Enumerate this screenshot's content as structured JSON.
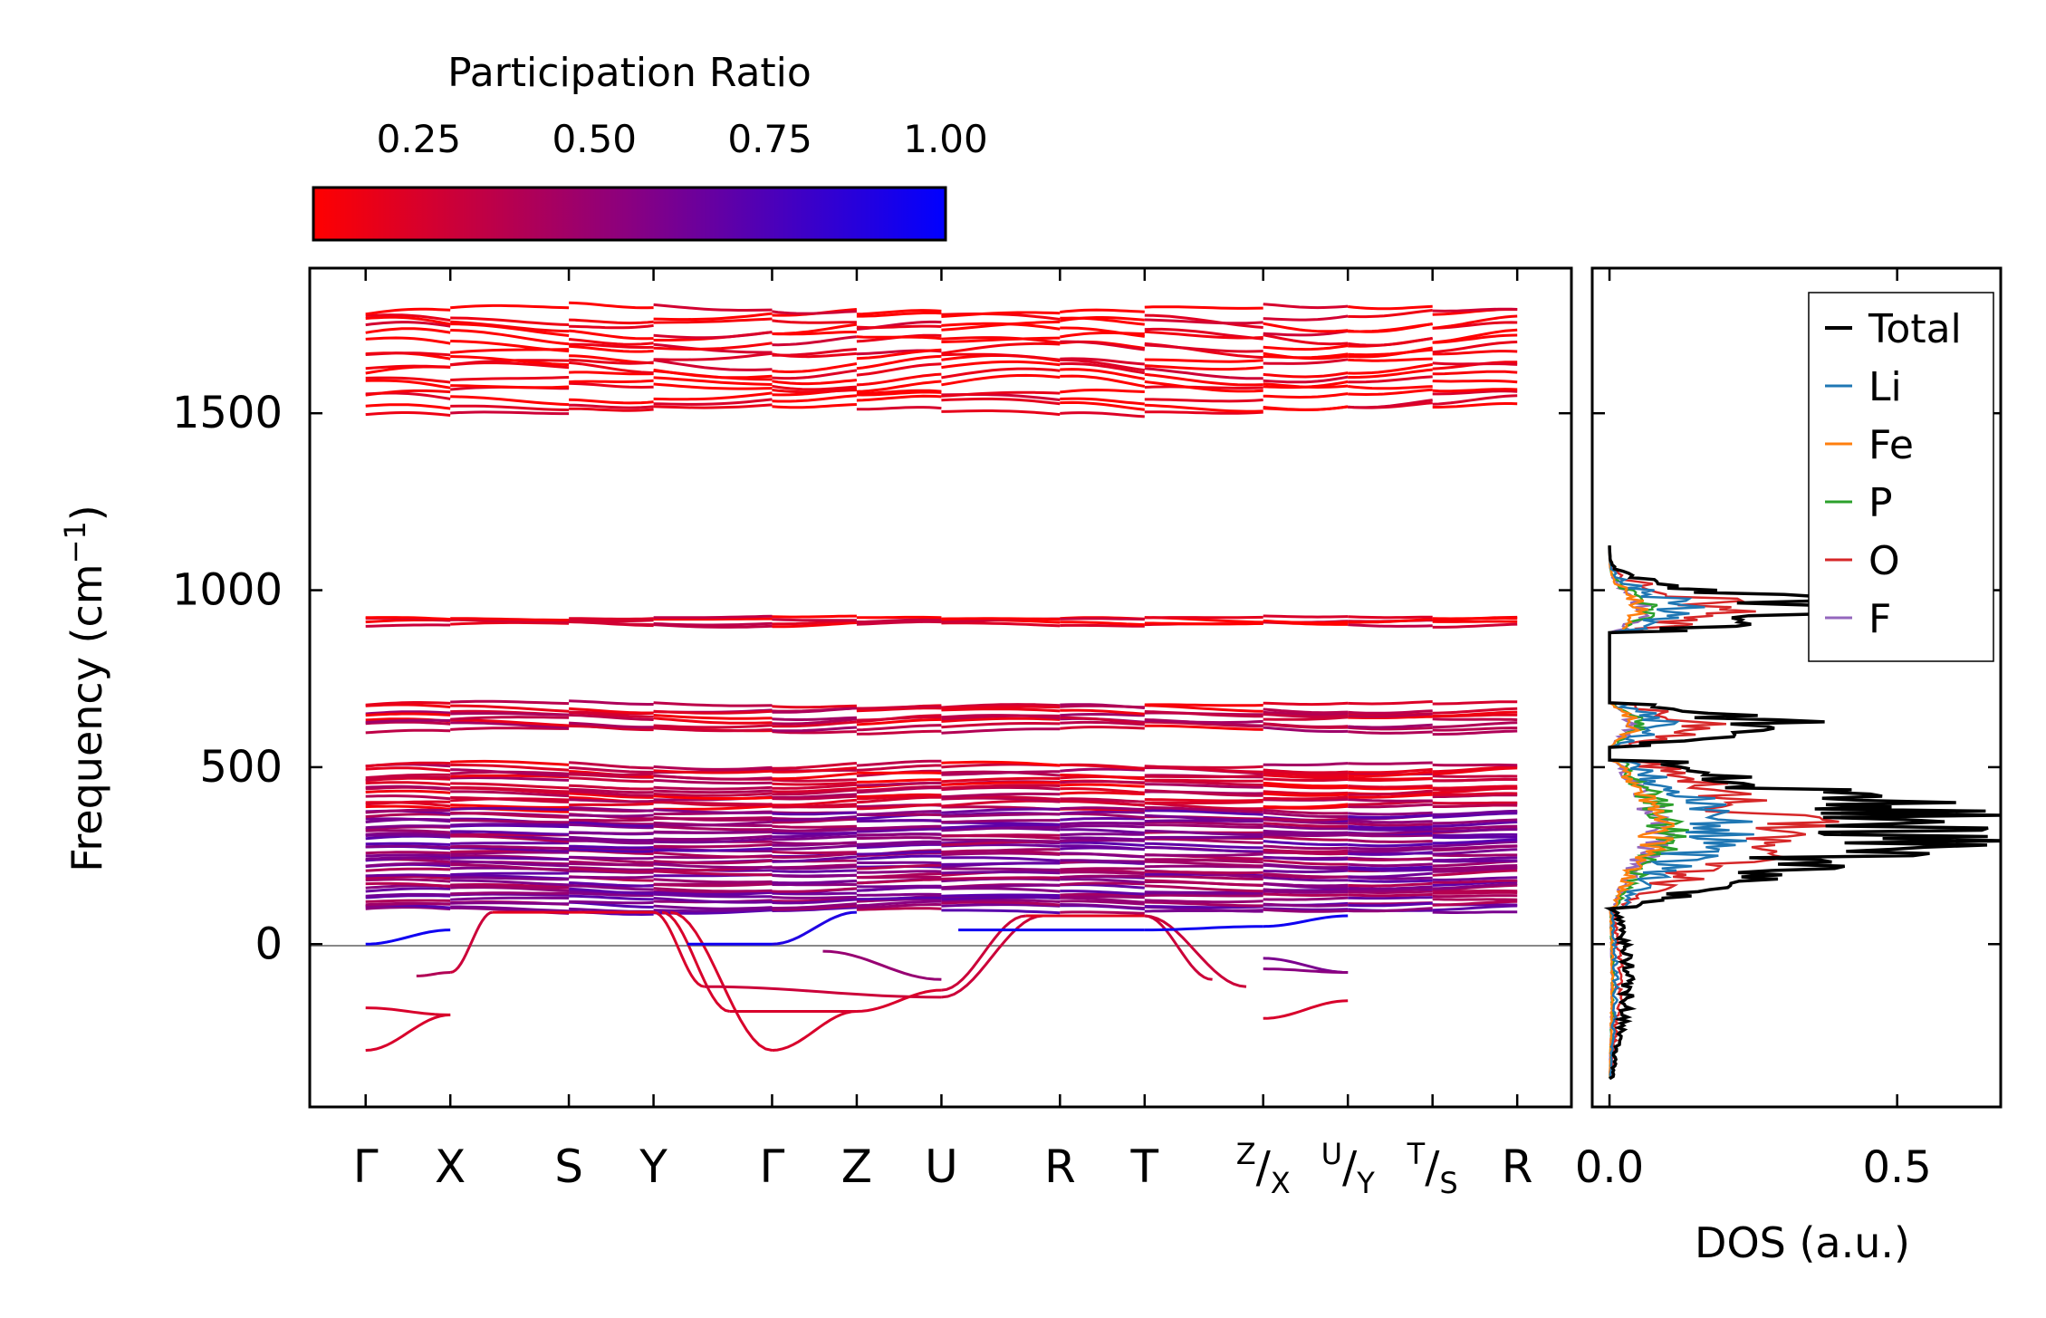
{
  "colorbar": {
    "label": "Participation Ratio",
    "ticks": [
      "0.25",
      "0.50",
      "0.75",
      "1.00"
    ],
    "tick_values": [
      0.25,
      0.5,
      0.75,
      1.0
    ],
    "range": [
      0.1,
      1.0
    ],
    "color_low": "#ff0000",
    "color_high": "#0000ff"
  },
  "chart_data": [
    {
      "type": "line",
      "name": "phonon band structure",
      "ylabel": "Frequency (cm⁻¹)",
      "ylim": [
        -460,
        1910
      ],
      "yticks": [
        0,
        500,
        1000,
        1500
      ],
      "ytick_labels": [
        "0",
        "500",
        "1000",
        "1500"
      ],
      "kpath": [
        {
          "label": "Γ",
          "pos": 0.0
        },
        {
          "label": "X",
          "pos": 0.5
        },
        {
          "label": "S",
          "pos": 1.2
        },
        {
          "label": "Y",
          "pos": 1.7
        },
        {
          "label": "Γ",
          "pos": 2.4
        },
        {
          "label": "Z",
          "pos": 2.9
        },
        {
          "label": "U",
          "pos": 3.4
        },
        {
          "label": "R",
          "pos": 4.1
        },
        {
          "label": "T",
          "pos": 4.6
        },
        {
          "label": "Z|X",
          "sup": "Z",
          "main": "/X",
          "pos": 5.3
        },
        {
          "label": "U|Y",
          "sup": "U",
          "main": "/Y",
          "pos": 5.8
        },
        {
          "label": "T|S",
          "sup": "T",
          "main": "/S",
          "pos": 6.3
        },
        {
          "label": "R",
          "pos": 6.8
        }
      ],
      "xlim": [
        -0.33,
        7.12
      ],
      "zero_line": 0,
      "band_groups": [
        {
          "range": [
            1500,
            1800
          ],
          "bands": 16,
          "pr": 0.12
        },
        {
          "range": [
            900,
            925
          ],
          "bands": 4,
          "pr": 0.2
        },
        {
          "range": [
            600,
            680
          ],
          "bands": 8,
          "pr": 0.3
        },
        {
          "range": [
            380,
            510
          ],
          "bands": 14,
          "pr": 0.28
        },
        {
          "range": [
            90,
            380
          ],
          "bands": 36,
          "pr": 0.55
        }
      ],
      "imaginary_modes_min": -300
    },
    {
      "type": "line",
      "name": "density of states",
      "xlabel": "DOS (a.u.)",
      "xlim": [
        -0.03,
        0.68
      ],
      "xticks": [
        0.0,
        0.5
      ],
      "xtick_labels": [
        "0.0",
        "0.5"
      ],
      "ylim": [
        -460,
        1910
      ],
      "series": [
        {
          "name": "Total",
          "color": "#000000",
          "peak": 0.64
        },
        {
          "name": "Li",
          "color": "#1f77b4",
          "peak": 0.22
        },
        {
          "name": "Fe",
          "color": "#ff7f0e",
          "peak": 0.1
        },
        {
          "name": "P",
          "color": "#2ca02c",
          "peak": 0.12
        },
        {
          "name": "O",
          "color": "#d62728",
          "peak": 0.36
        },
        {
          "name": "F",
          "color": "#9467bd",
          "peak": 0.1
        }
      ]
    }
  ]
}
